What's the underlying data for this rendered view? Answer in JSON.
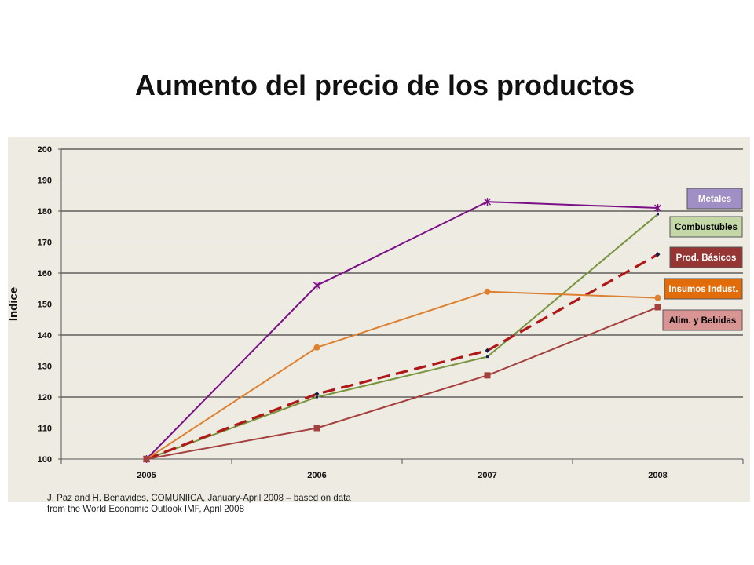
{
  "page": {
    "title": "Aumento del precio de los productos"
  },
  "source": {
    "line1": "J. Paz and H. Benavides, COMUNIICA,   January-April 2008 – based on data",
    "line2": "from the World Economic Outlook IMF, April 2008"
  },
  "chart_data": {
    "type": "line",
    "title": "Aumento del precio de los productos",
    "ylabel": "Indice",
    "xlabel": "",
    "categories": [
      "2005",
      "2006",
      "2007",
      "2008"
    ],
    "ylim": [
      100,
      200
    ],
    "yticks": [
      100,
      110,
      120,
      130,
      140,
      150,
      160,
      170,
      180,
      190,
      200
    ],
    "grid": true,
    "background": "#eeebe2",
    "legend_placement": "right",
    "series": [
      {
        "name": "Metales",
        "values": [
          100,
          156,
          183,
          181
        ],
        "color": "#7a0f86",
        "marker": "asterisk",
        "dashed": false,
        "label_bg": "#a08fc4",
        "label_fg": "#ffffff"
      },
      {
        "name": "Combustubles",
        "values": [
          100,
          120,
          133,
          179
        ],
        "color": "#77943e",
        "marker": "dot",
        "dashed": false,
        "label_bg": "#c3d8a6",
        "label_fg": "#000000"
      },
      {
        "name": "Prod. Básicos",
        "values": [
          100,
          121,
          135,
          166
        ],
        "color": "#b01818",
        "marker": "diamond",
        "dashed": true,
        "label_bg": "#953634",
        "label_fg": "#ffffff"
      },
      {
        "name": "Insumos Indust.",
        "values": [
          100,
          136,
          154,
          152
        ],
        "color": "#dd8030",
        "marker": "circle",
        "dashed": false,
        "label_bg": "#e36c0a",
        "label_fg": "#ffffff"
      },
      {
        "name": "Alim. y Bebidas",
        "values": [
          100,
          110,
          127,
          149
        ],
        "color": "#a4403e",
        "marker": "square",
        "dashed": false,
        "label_bg": "#d99594",
        "label_fg": "#000000"
      }
    ]
  }
}
